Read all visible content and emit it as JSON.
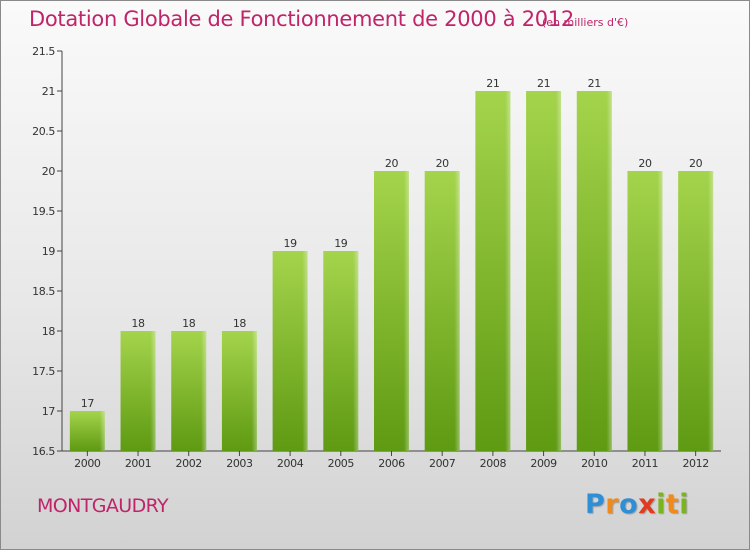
{
  "header": {
    "title": "Dotation Globale de Fonctionnement de 2000 à 2012",
    "unit": "(en milliers d'€)"
  },
  "footer": {
    "commune": "MONTGAUDRY",
    "logo_alt": "Proxiti"
  },
  "colors": {
    "bar_top": "#a4d44c",
    "bar_bottom": "#5e9a12",
    "title": "#c0246a"
  },
  "chart_data": {
    "type": "bar",
    "title": "Dotation Globale de Fonctionnement de 2000 à 2012",
    "subtitle": "(en milliers d'€)",
    "xlabel": "",
    "ylabel": "",
    "categories": [
      "2000",
      "2001",
      "2002",
      "2003",
      "2004",
      "2005",
      "2006",
      "2007",
      "2008",
      "2009",
      "2010",
      "2011",
      "2012"
    ],
    "values": [
      17,
      18,
      18,
      18,
      19,
      19,
      20,
      20,
      21,
      21,
      21,
      20,
      20
    ],
    "data_labels": [
      "17",
      "18",
      "18",
      "18",
      "19",
      "19",
      "20",
      "20",
      "21",
      "21",
      "21",
      "20",
      "20"
    ],
    "ylim": [
      16.5,
      21.5
    ],
    "yticks": [
      16.5,
      17,
      17.5,
      18,
      18.5,
      19,
      19.5,
      20,
      20.5,
      21,
      21.5
    ],
    "ytick_labels": [
      "16.5",
      "17",
      "17.5",
      "18",
      "18.5",
      "19",
      "19.5",
      "20",
      "20.5",
      "21",
      "21.5"
    ],
    "grid": false,
    "legend": "none"
  }
}
